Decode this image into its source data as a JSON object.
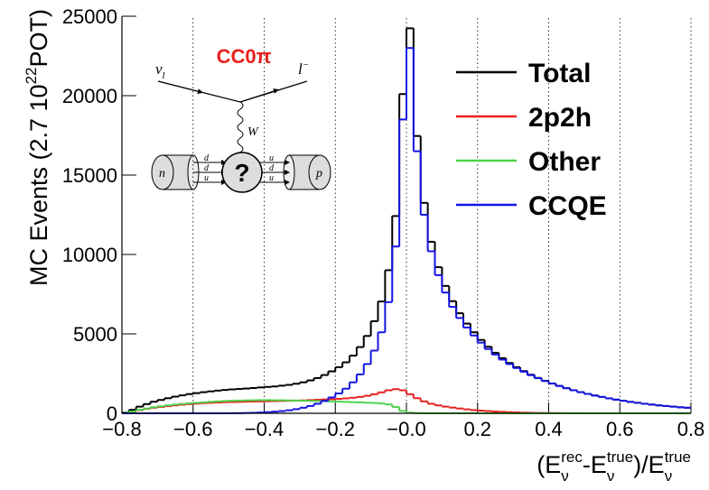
{
  "chart_data": {
    "type": "histogram",
    "ylabel": [
      {
        "text": "MC Events (2.7 10"
      },
      {
        "sup": "22"
      },
      {
        "text": " POT)"
      }
    ],
    "xlabel": [
      {
        "text": "(E"
      },
      {
        "sup": "rec",
        "sub": "ν"
      },
      {
        "text": "-E"
      },
      {
        "sup": "true",
        "sub": "ν"
      },
      {
        "text": ")/E"
      },
      {
        "sup": "true",
        "sub": "ν"
      }
    ],
    "xlim": [
      -0.8,
      0.8
    ],
    "ylim": [
      0,
      25000
    ],
    "xticks": [
      {
        "value": -0.8,
        "label": "−0.8"
      },
      {
        "value": -0.6,
        "label": "−0.6"
      },
      {
        "value": -0.4,
        "label": "−0.4"
      },
      {
        "value": -0.2,
        "label": "−0.2"
      },
      {
        "value": 0,
        "label": "−0.0"
      },
      0.2,
      0.4,
      0.6,
      0.8
    ],
    "yticks": [
      0,
      5000,
      10000,
      15000,
      20000,
      25000
    ],
    "grid": "x",
    "legend": "upper right",
    "bins": [
      -0.8,
      -0.78,
      -0.76,
      -0.74,
      -0.72,
      -0.7,
      -0.68,
      -0.66,
      -0.64,
      -0.62,
      -0.6,
      -0.58,
      -0.56,
      -0.54,
      -0.52,
      -0.5,
      -0.48,
      -0.46,
      -0.44,
      -0.42,
      -0.4,
      -0.38,
      -0.36,
      -0.34,
      -0.32,
      -0.3,
      -0.28,
      -0.26,
      -0.24,
      -0.22,
      -0.2,
      -0.18,
      -0.16,
      -0.14,
      -0.12,
      -0.1,
      -0.08,
      -0.06,
      -0.04,
      -0.02,
      0,
      0.02,
      0.04,
      0.06,
      0.08,
      0.1,
      0.12,
      0.14,
      0.16,
      0.18,
      0.2,
      0.22,
      0.24,
      0.26,
      0.28,
      0.3,
      0.32,
      0.34,
      0.36,
      0.38,
      0.4,
      0.42,
      0.44,
      0.46,
      0.48,
      0.5,
      0.52,
      0.54,
      0.56,
      0.58,
      0.6,
      0.62,
      0.64,
      0.66,
      0.68,
      0.7,
      0.72,
      0.74,
      0.76,
      0.78,
      0.8
    ],
    "series": [
      {
        "name": "Total",
        "color": "#000000",
        "values": [
          50,
          220,
          420,
          580,
          730,
          840,
          950,
          1050,
          1130,
          1210,
          1270,
          1330,
          1380,
          1430,
          1470,
          1505,
          1530,
          1560,
          1590,
          1630,
          1660,
          1690,
          1740,
          1790,
          1860,
          1950,
          2070,
          2220,
          2410,
          2640,
          2900,
          3210,
          3630,
          4170,
          4870,
          5800,
          7040,
          9010,
          12420,
          20100,
          24240,
          17460,
          13250,
          10800,
          9200,
          8020,
          7060,
          6300,
          5650,
          5100,
          4620,
          4190,
          3810,
          3470,
          3170,
          2905,
          2660,
          2430,
          2230,
          2045,
          1880,
          1728,
          1585,
          1453,
          1332,
          1220,
          1120,
          1030,
          940,
          860,
          790,
          720,
          660,
          600,
          550,
          500,
          460,
          420,
          380,
          350
        ]
      },
      {
        "name": "2p2h",
        "color": "#e8201c",
        "values": [
          20,
          100,
          200,
          280,
          350,
          400,
          450,
          500,
          540,
          580,
          610,
          640,
          660,
          680,
          700,
          710,
          720,
          730,
          740,
          750,
          760,
          770,
          780,
          790,
          800,
          810,
          830,
          850,
          870,
          890,
          910,
          940,
          980,
          1030,
          1100,
          1200,
          1320,
          1450,
          1520,
          1450,
          1200,
          950,
          750,
          600,
          500,
          420,
          360,
          300,
          250,
          200,
          170,
          140,
          110,
          90,
          70,
          55,
          40,
          30,
          20,
          15,
          10,
          8,
          5,
          3,
          2,
          0,
          0,
          0,
          0,
          0,
          0,
          0,
          0,
          0,
          0,
          0,
          0,
          0,
          0,
          0
        ]
      },
      {
        "name": "Other",
        "color": "#4fd14a",
        "values": [
          30,
          120,
          220,
          300,
          380,
          440,
          500,
          550,
          590,
          630,
          660,
          690,
          720,
          750,
          770,
          790,
          800,
          810,
          820,
          830,
          830,
          820,
          820,
          810,
          800,
          790,
          780,
          770,
          760,
          750,
          740,
          720,
          700,
          690,
          670,
          650,
          620,
          560,
          400,
          150,
          40,
          10,
          0,
          0,
          0,
          0,
          0,
          0,
          0,
          0,
          0,
          0,
          0,
          0,
          0,
          0,
          0,
          0,
          0,
          0,
          0,
          0,
          0,
          0,
          0,
          0,
          0,
          0,
          0,
          0,
          0,
          0,
          0,
          0,
          0,
          0,
          0,
          0,
          0,
          0
        ]
      },
      {
        "name": "CCQE",
        "color": "#1414e6",
        "values": [
          0,
          0,
          0,
          0,
          0,
          0,
          0,
          0,
          0,
          0,
          0,
          0,
          0,
          0,
          0,
          5,
          10,
          20,
          30,
          50,
          70,
          100,
          140,
          190,
          260,
          350,
          460,
          600,
          780,
          1000,
          1250,
          1550,
          1950,
          2450,
          3100,
          3950,
          5100,
          7000,
          10500,
          18500,
          23000,
          16500,
          12500,
          10200,
          8700,
          7600,
          6700,
          6000,
          5400,
          4900,
          4450,
          4050,
          3700,
          3380,
          3100,
          2850,
          2620,
          2400,
          2210,
          2030,
          1870,
          1720,
          1580,
          1450,
          1330,
          1220,
          1120,
          1030,
          940,
          860,
          790,
          720,
          660,
          600,
          550,
          500,
          460,
          420,
          380,
          350
        ]
      }
    ],
    "inset": {
      "title": "CC0π",
      "lepton_in": "ν",
      "lepton_in_sub": "l",
      "lepton_out": "l",
      "lepton_out_sup": "−",
      "boson": "W",
      "blob": "?",
      "nucleon_in": "n",
      "nucleon_out": "p",
      "quarks_in": [
        "d",
        "d",
        "u"
      ],
      "quarks_out": [
        "u",
        "d",
        "u"
      ]
    }
  }
}
